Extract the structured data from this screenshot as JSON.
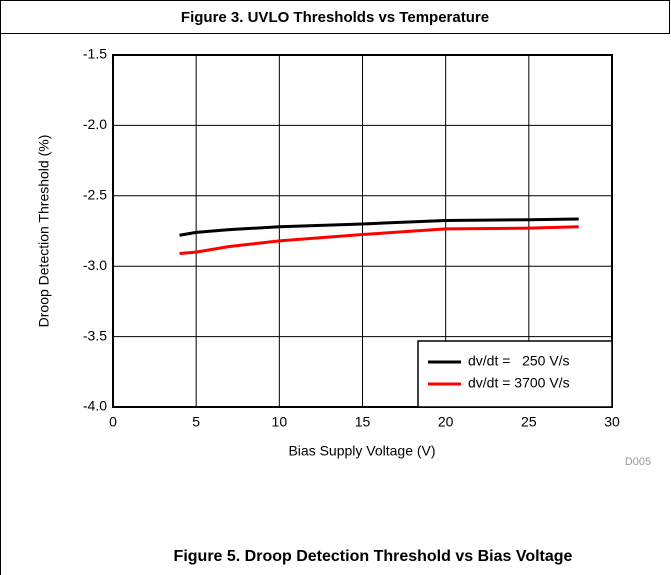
{
  "header": {
    "title": "Figure 3. UVLO Thresholds vs Temperature"
  },
  "chart_data": {
    "type": "line",
    "xlabel": "Bias Supply Voltage  (V)",
    "ylabel": "Droop Detection Threshold  (%)",
    "annotation": "D005",
    "caption": "Figure 5. Droop Detection Threshold vs Bias Voltage",
    "x": [
      4,
      5,
      7,
      10,
      15,
      20,
      25,
      28
    ],
    "series": [
      {
        "name": "dv/dt =   250 V/s",
        "color": "#000000",
        "values": [
          -2.78,
          -2.76,
          -2.74,
          -2.72,
          -2.7,
          -2.675,
          -2.67,
          -2.665
        ]
      },
      {
        "name": "dv/dt = 3700 V/s",
        "color": "#ff0000",
        "values": [
          -2.91,
          -2.9,
          -2.86,
          -2.82,
          -2.775,
          -2.735,
          -2.73,
          -2.72
        ]
      }
    ],
    "xlim": [
      0,
      30
    ],
    "xticks": [
      0,
      5,
      10,
      15,
      20,
      25,
      30
    ],
    "ylim": [
      -4,
      -1.5
    ],
    "yticks": [
      {
        "value": -4,
        "label": "-4.0"
      },
      -3.5,
      {
        "value": -3,
        "label": "-3.0"
      },
      -2.5,
      {
        "value": -2,
        "label": "-2.0"
      },
      -1.5
    ],
    "grid": true,
    "legend": "lower right"
  }
}
